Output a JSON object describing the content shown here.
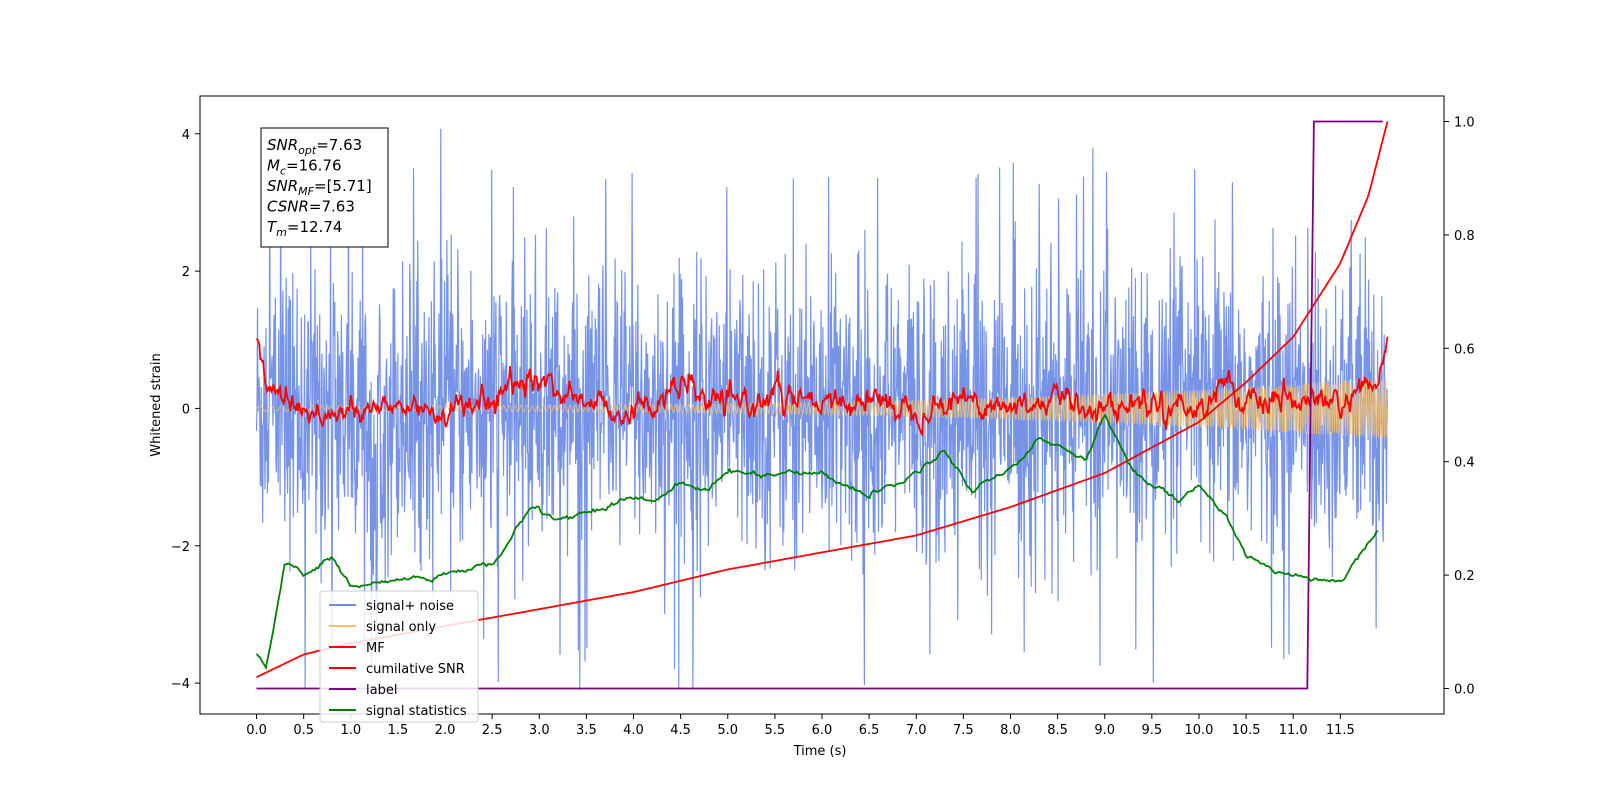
{
  "chart_data": {
    "type": "line",
    "title": "",
    "xlabel": "Time (s)",
    "ylabel": "Whitened strain",
    "xlim": [
      -0.6,
      12.6
    ],
    "ylim": [
      -4.45,
      4.55
    ],
    "y2lim": [
      -0.045,
      1.045
    ],
    "x_ticks": [
      0.0,
      0.5,
      1.0,
      1.5,
      2.0,
      2.5,
      3.0,
      3.5,
      4.0,
      4.5,
      5.0,
      5.5,
      6.0,
      6.5,
      7.0,
      7.5,
      8.0,
      8.5,
      9.0,
      9.5,
      10.0,
      10.5,
      11.0,
      11.5
    ],
    "x_tick_labels": [
      "0.0",
      "0.5",
      "1.0",
      "1.5",
      "2.0",
      "2.5",
      "3.0",
      "3.5",
      "4.0",
      "4.5",
      "5.0",
      "5.5",
      "6.0",
      "6.5",
      "7.0",
      "7.5",
      "8.0",
      "8.5",
      "9.0",
      "9.5",
      "10.0",
      "10.5",
      "11.0",
      "11.5"
    ],
    "y_ticks": [
      -4,
      -2,
      0,
      2,
      4
    ],
    "y_tick_labels": [
      "−4",
      "−2",
      "0",
      "2",
      "4"
    ],
    "y2_ticks": [
      0.0,
      0.2,
      0.4,
      0.6,
      0.8,
      1.0
    ],
    "y2_tick_labels": [
      "0.0",
      "0.2",
      "0.4",
      "0.6",
      "0.8",
      "1.0"
    ],
    "legend_position": "lower-left",
    "series": [
      {
        "name": "signal+ noise",
        "axis": "left",
        "color": "#6f8de6",
        "style": "noise band, approx ±2.5 with spikes to ±4.1",
        "range": [
          -4.1,
          4.15
        ],
        "duration": [
          0.0,
          12.0
        ]
      },
      {
        "name": "signal only",
        "axis": "left",
        "color": "#f5c26b",
        "style": "chirp with amplitude growing to ~0.45",
        "range": [
          -0.45,
          0.45
        ],
        "duration": [
          0.0,
          12.0
        ]
      },
      {
        "name": "MF",
        "axis": "left",
        "color": "#ff0000",
        "x": [
          0.0,
          0.1,
          0.5,
          1.0,
          1.5,
          2.0,
          2.5,
          2.9,
          3.5,
          4.0,
          4.5,
          5.0,
          5.5,
          6.0,
          6.5,
          7.0,
          7.5,
          8.0,
          8.5,
          9.0,
          9.5,
          10.0,
          10.3,
          10.5,
          11.0,
          11.5,
          11.9,
          12.0
        ],
        "y": [
          1.0,
          0.4,
          0.0,
          -0.1,
          0.05,
          -0.05,
          0.1,
          0.45,
          0.1,
          -0.05,
          0.3,
          0.0,
          0.2,
          0.0,
          0.15,
          0.0,
          0.15,
          0.0,
          0.15,
          0.0,
          0.1,
          0.0,
          0.45,
          0.0,
          0.1,
          0.05,
          0.3,
          1.0
        ]
      },
      {
        "name": "cumilative SNR",
        "axis": "right",
        "color": "#ff0000",
        "x": [
          0.0,
          0.5,
          1.0,
          2.0,
          3.0,
          4.0,
          5.0,
          6.0,
          7.0,
          8.0,
          9.0,
          10.0,
          10.5,
          11.0,
          11.5,
          11.8,
          12.0
        ],
        "y": [
          0.02,
          0.06,
          0.08,
          0.11,
          0.14,
          0.17,
          0.21,
          0.24,
          0.27,
          0.32,
          0.38,
          0.47,
          0.54,
          0.62,
          0.75,
          0.87,
          1.0
        ]
      },
      {
        "name": "label",
        "axis": "right",
        "color": "#800080",
        "x": [
          0.0,
          11.15,
          11.22,
          11.95
        ],
        "y": [
          0.0,
          0.0,
          1.0,
          1.0
        ]
      },
      {
        "name": "signal statistics",
        "axis": "right",
        "color": "#008000",
        "x": [
          0.0,
          0.1,
          0.3,
          0.5,
          0.8,
          1.0,
          1.5,
          2.0,
          2.5,
          2.7,
          2.9,
          3.2,
          3.5,
          4.0,
          4.2,
          4.5,
          4.8,
          5.0,
          5.5,
          6.0,
          6.5,
          7.0,
          7.3,
          7.6,
          8.0,
          8.3,
          8.5,
          8.8,
          9.0,
          9.3,
          9.5,
          9.8,
          10.0,
          10.3,
          10.5,
          10.8,
          11.0,
          11.5,
          11.9
        ],
        "y": [
          0.06,
          0.04,
          0.22,
          0.2,
          0.23,
          0.18,
          0.19,
          0.2,
          0.22,
          0.26,
          0.32,
          0.3,
          0.31,
          0.34,
          0.33,
          0.36,
          0.35,
          0.38,
          0.38,
          0.38,
          0.34,
          0.38,
          0.42,
          0.35,
          0.39,
          0.44,
          0.43,
          0.4,
          0.48,
          0.39,
          0.36,
          0.33,
          0.36,
          0.3,
          0.23,
          0.21,
          0.2,
          0.19,
          0.28
        ]
      }
    ],
    "annotation": {
      "lines": [
        {
          "key": "SNR",
          "sub": "opt",
          "value": "=7.63"
        },
        {
          "key": "M",
          "sub": "c",
          "value": "=16.76"
        },
        {
          "key": "SNR",
          "sub": "MF",
          "value": "=[5.71]"
        },
        {
          "key": "CSNR",
          "sub": "",
          "value": "=7.63"
        },
        {
          "key": "T",
          "sub": "m",
          "value": "=12.74"
        }
      ]
    }
  }
}
